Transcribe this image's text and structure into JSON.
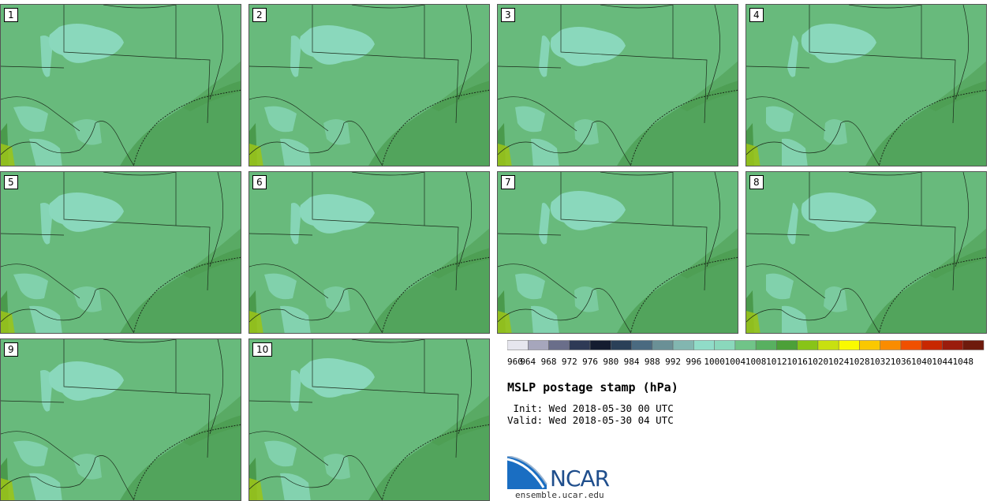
{
  "panels": [
    {
      "label": "1"
    },
    {
      "label": "2"
    },
    {
      "label": "3"
    },
    {
      "label": "4"
    },
    {
      "label": "5"
    },
    {
      "label": "6"
    },
    {
      "label": "7"
    },
    {
      "label": "8"
    },
    {
      "label": "9"
    },
    {
      "label": "10"
    }
  ],
  "colorbar": {
    "ticks": [
      "960",
      "964",
      "968",
      "972",
      "976",
      "980",
      "984",
      "988",
      "992",
      "996",
      "1000",
      "1004",
      "1008",
      "1012",
      "1016",
      "1020",
      "1024",
      "1028",
      "1032",
      "1036",
      "1040",
      "1044",
      "1048"
    ],
    "colors": [
      "#e6e6ee",
      "#a6a6bc",
      "#6a6e8a",
      "#2e3a56",
      "#141c30",
      "#2a4058",
      "#4a6a80",
      "#6a9096",
      "#82b6b0",
      "#90dcc8",
      "#8ad8bc",
      "#70c488",
      "#58b060",
      "#4ca038",
      "#88c418",
      "#c8e010",
      "#fafa00",
      "#fac800",
      "#fa8c00",
      "#f05000",
      "#c82800",
      "#9a1c0c",
      "#6e1a0c"
    ]
  },
  "title": "MSLP postage stamp (hPa)",
  "init": " Init: Wed 2018-05-30 00 UTC",
  "valid": "Valid: Wed 2018-05-30 04 UTC",
  "logo": {
    "text": "NCAR",
    "url": "ensemble.ucar.edu"
  },
  "map_colors": {
    "land": "#68ba7c",
    "high": "#8ad8bc",
    "gulf": "#52a45c",
    "dark": "#4a9a4c",
    "yellow": "#9cc418",
    "border": "#1a2a1a"
  }
}
